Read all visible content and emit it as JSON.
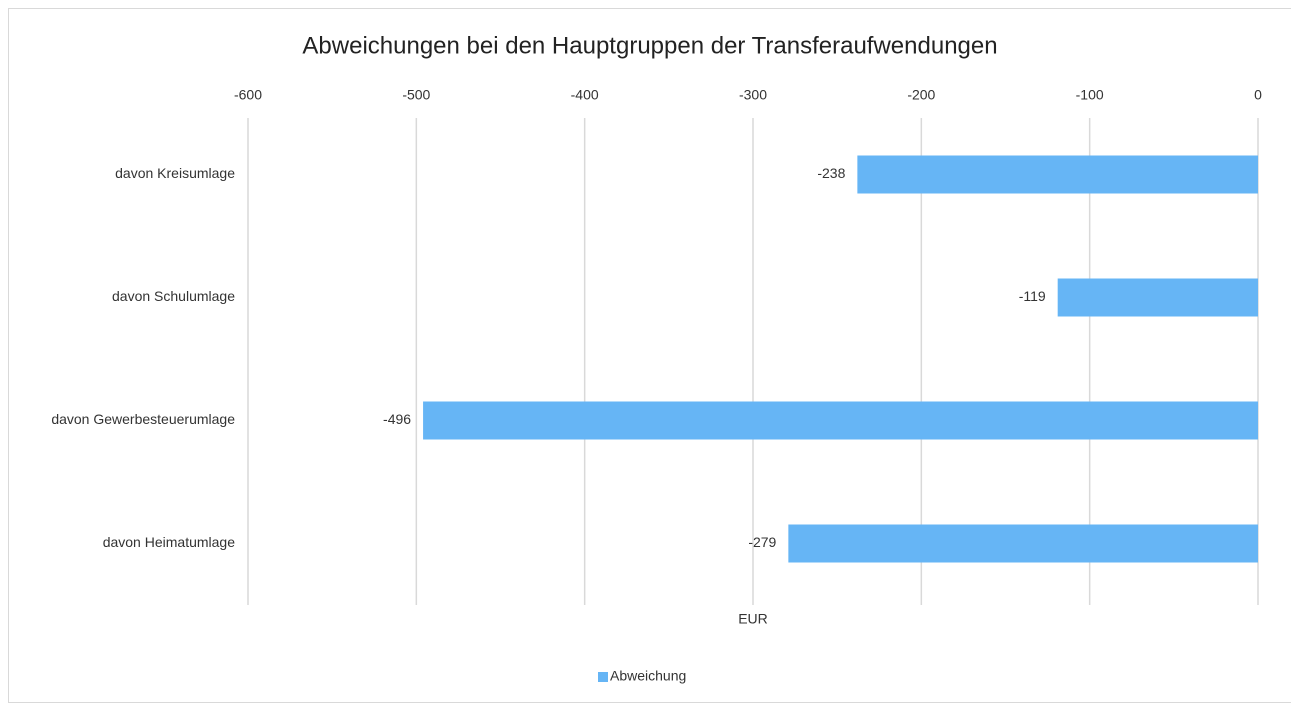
{
  "chart_data": {
    "type": "barh",
    "title": "Abweichungen bei den Hauptgruppen der Transferaufwendungen",
    "xlabel": "EUR",
    "categories": [
      "davon Kreisumlage",
      "davon Schulumlage",
      "davon Gewerbesteuerumlage",
      "davon Heimatumlage"
    ],
    "series": [
      {
        "name": "Abweichung",
        "color": "#66b5f5",
        "values": [
          -238,
          -119,
          -496,
          -279
        ]
      }
    ],
    "xlim": [
      -600,
      0
    ],
    "xticks": [
      -600,
      -500,
      -400,
      -300,
      -200,
      -100,
      0
    ],
    "grid": true,
    "legend": "bottom"
  }
}
